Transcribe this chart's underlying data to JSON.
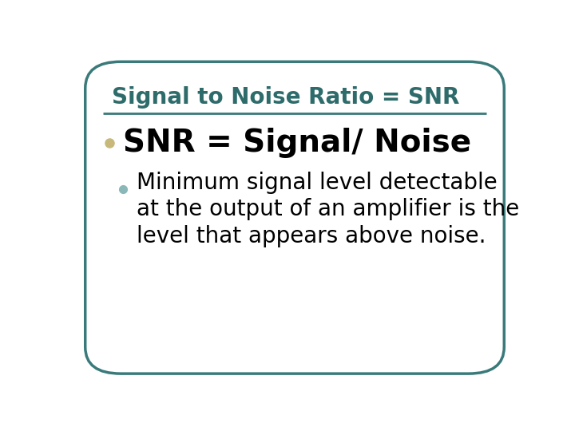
{
  "title": "Signal to Noise Ratio = SNR",
  "title_color": "#2e6b6b",
  "title_fontsize": 20,
  "bullet1_text": "SNR = Signal/ Noise",
  "bullet1_fontsize": 28,
  "bullet1_color": "#000000",
  "bullet1_marker_color": "#c8b87a",
  "bullet2_line1": "Minimum signal level detectable",
  "bullet2_line2": "at the output of an amplifier is the",
  "bullet2_line3": "level that appears above noise.",
  "bullet2_fontsize": 20,
  "bullet2_color": "#000000",
  "bullet2_marker_color": "#8ab8b8",
  "bg_color": "#ffffff",
  "border_color": "#3a7a7a",
  "line_color": "#3a7a7a",
  "line_width": 2.0
}
